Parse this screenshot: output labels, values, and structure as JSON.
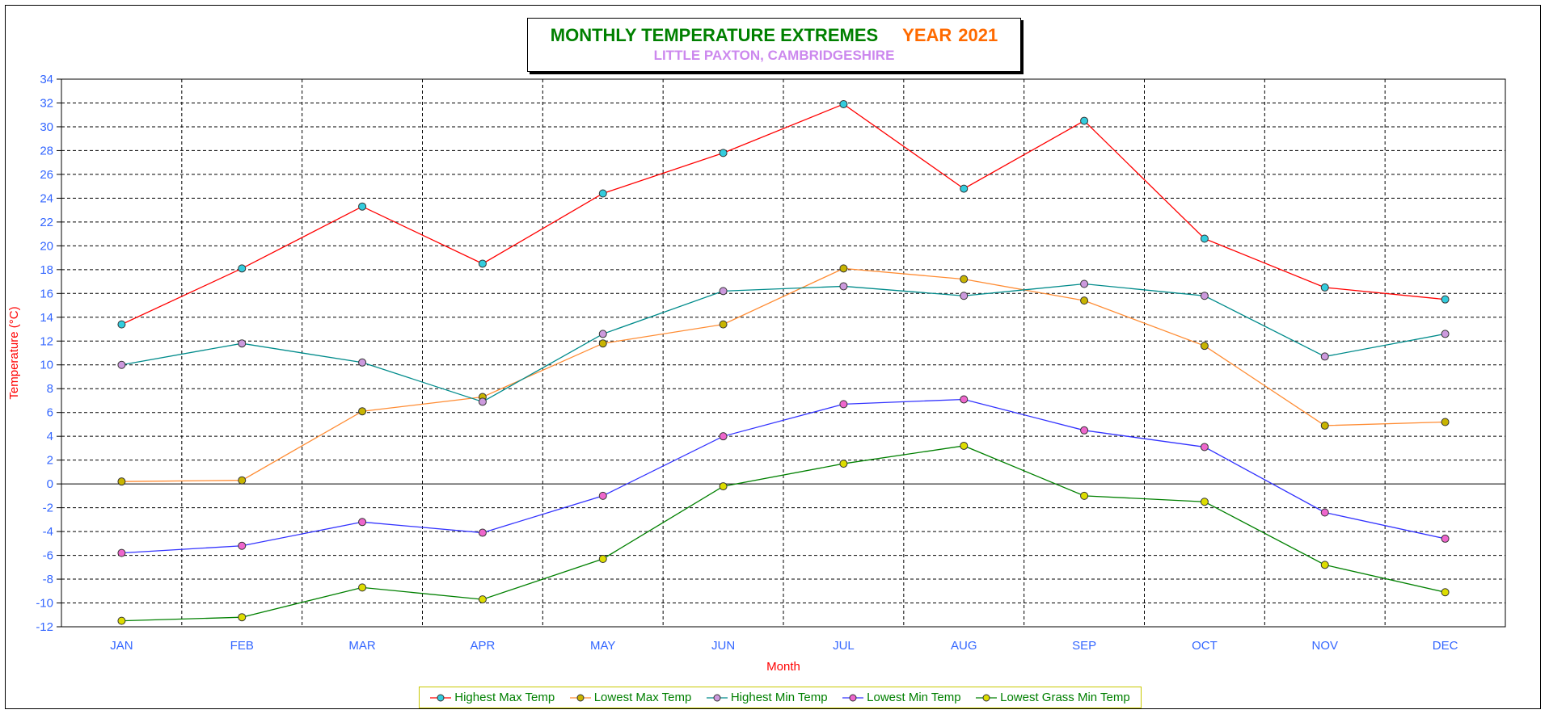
{
  "chart_data": {
    "type": "line",
    "title": "MONTHLY TEMPERATURE EXTREMES",
    "title_year_label": "YEAR",
    "title_year": "2021",
    "subtitle": "LITTLE PAXTON, CAMBRIDGESHIRE",
    "xlabel": "Month",
    "ylabel": "Temperature (°C)",
    "ylim": [
      -12,
      34
    ],
    "ytick_step": 2,
    "grid": true,
    "legend_position": "bottom",
    "categories": [
      "JAN",
      "FEB",
      "MAR",
      "APR",
      "MAY",
      "JUN",
      "JUL",
      "AUG",
      "SEP",
      "OCT",
      "NOV",
      "DEC"
    ],
    "series": [
      {
        "name": "Highest Max Temp",
        "line_color": "#ff0000",
        "marker_color": "#33ccdd",
        "values": [
          13.4,
          18.1,
          23.3,
          18.5,
          24.4,
          27.8,
          31.9,
          24.8,
          30.5,
          20.6,
          16.5,
          15.5
        ]
      },
      {
        "name": "Lowest Max Temp",
        "line_color": "#ff8c33",
        "marker_color": "#c8b400",
        "values": [
          0.2,
          0.3,
          6.1,
          7.3,
          11.8,
          13.4,
          18.1,
          17.2,
          15.4,
          11.6,
          4.9,
          5.2
        ]
      },
      {
        "name": "Highest Min Temp",
        "line_color": "#008b8b",
        "marker_color": "#cc99dd",
        "values": [
          10.0,
          11.8,
          10.2,
          6.9,
          12.6,
          16.2,
          16.6,
          15.8,
          16.8,
          15.8,
          10.7,
          12.6
        ]
      },
      {
        "name": "Lowest Min Temp",
        "line_color": "#3333ff",
        "marker_color": "#ee66cc",
        "values": [
          -5.8,
          -5.2,
          -3.2,
          -4.1,
          -1.0,
          4.0,
          6.7,
          7.1,
          4.5,
          3.1,
          -2.4,
          -4.6
        ]
      },
      {
        "name": "Lowest Grass Min Temp",
        "line_color": "#008000",
        "marker_color": "#dddd00",
        "values": [
          -11.5,
          -11.2,
          -8.7,
          -9.7,
          -6.3,
          -0.2,
          1.7,
          3.2,
          -1.0,
          -1.5,
          -6.8,
          -9.1
        ]
      }
    ]
  }
}
